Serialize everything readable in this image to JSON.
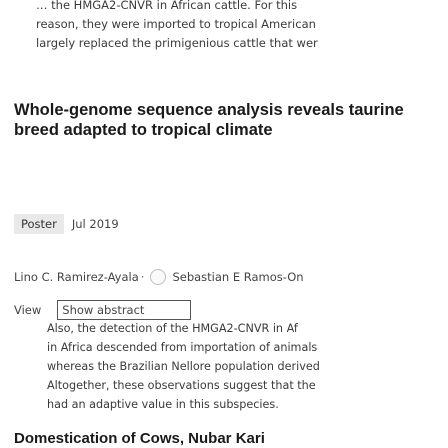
{
  "previous_abstract": {
    "lines": [
      "… the HMGA2-CNVR in African cattle. For this",
      "reason, they were imported to tropical American",
      "largely replaced the primigenious cattle that wer"
    ]
  },
  "result": {
    "title": "Whole-genome sequence analysis reveals taurine breed adapted to tropical climate",
    "type_badge": "Poster",
    "date": "Jul 2019",
    "authors": [
      "Lino C. Ramirez-Ayala",
      "Sebastian E Ramos-On"
    ],
    "author_separator": "·",
    "view_label": "View",
    "show_abstract_label": "Show abstract",
    "abstract_lines": [
      "Also, the detection of the HMGA2-CNVR in Af",
      "in Africa descended from importation of animals",
      "whereas the Brazilian Nellore population derived",
      "Altogether, these observations suggest that the",
      "had an adaptive value in this subspecies."
    ]
  },
  "next_result": {
    "title": "Domestication of Cows, Nubar Kari"
  }
}
